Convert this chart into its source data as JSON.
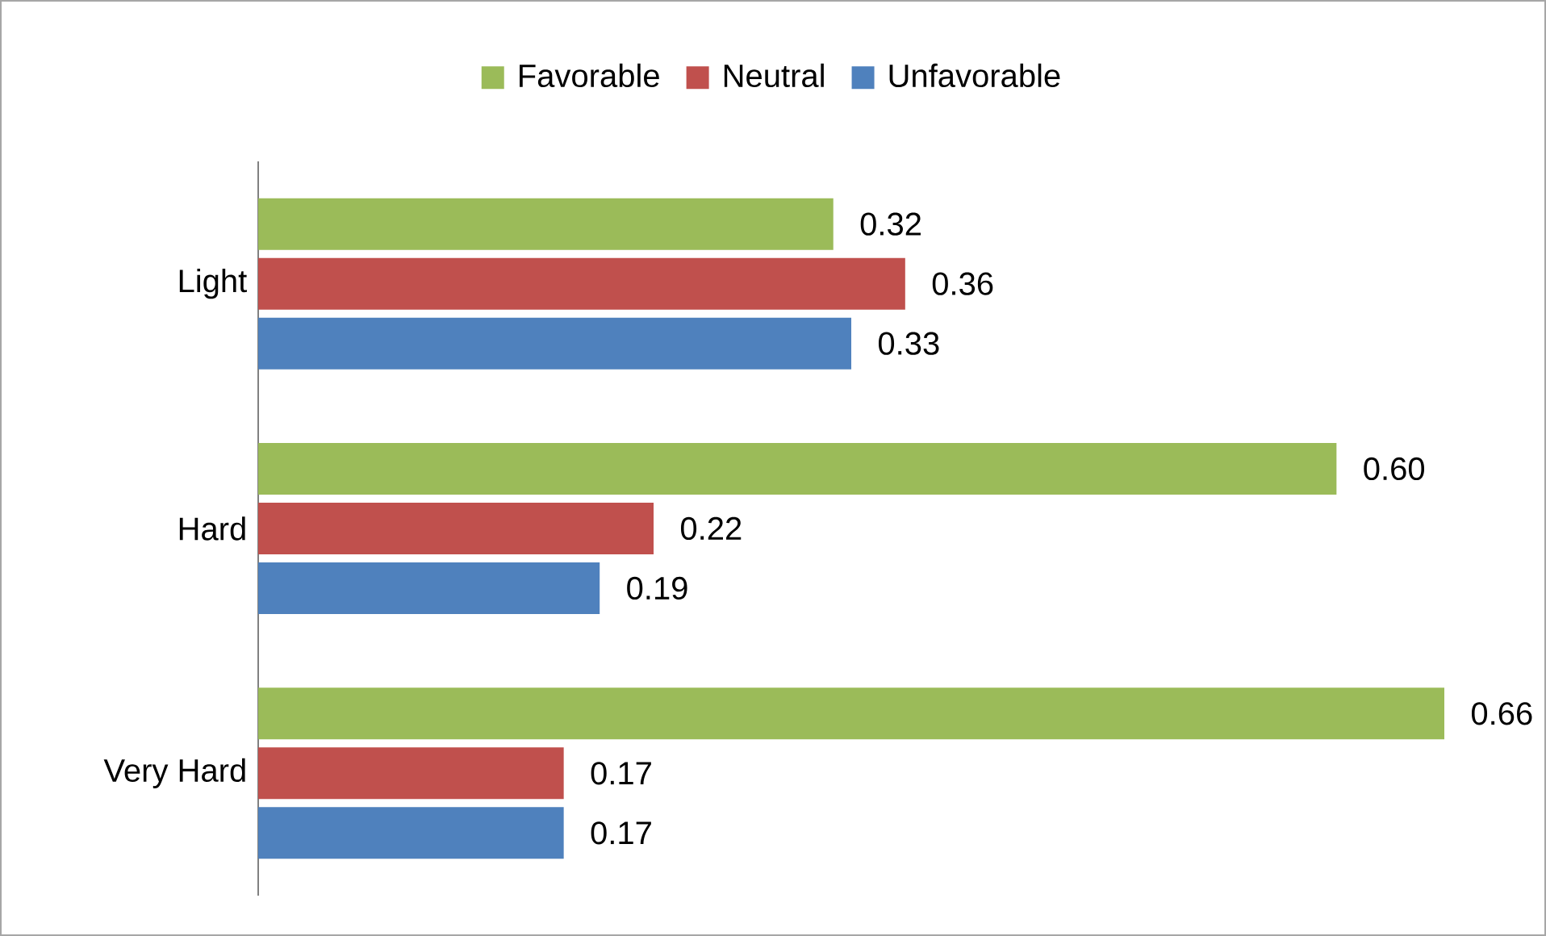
{
  "chart_data": {
    "type": "bar",
    "orientation": "horizontal",
    "categories": [
      "Light",
      "Hard",
      "Very Hard"
    ],
    "series": [
      {
        "name": "Favorable",
        "color": "#9bbb59",
        "values": [
          0.32,
          0.6,
          0.66
        ],
        "value_labels": [
          "0.32",
          "0.60",
          "0.66"
        ]
      },
      {
        "name": "Neutral",
        "color": "#c0504d",
        "values": [
          0.36,
          0.22,
          0.17
        ],
        "value_labels": [
          "0.36",
          "0.22",
          "0.17"
        ]
      },
      {
        "name": "Unfavorable",
        "color": "#4f81bd",
        "values": [
          0.33,
          0.19,
          0.17
        ],
        "value_labels": [
          "0.33",
          "0.19",
          "0.17"
        ]
      }
    ],
    "legend": "top"
  }
}
